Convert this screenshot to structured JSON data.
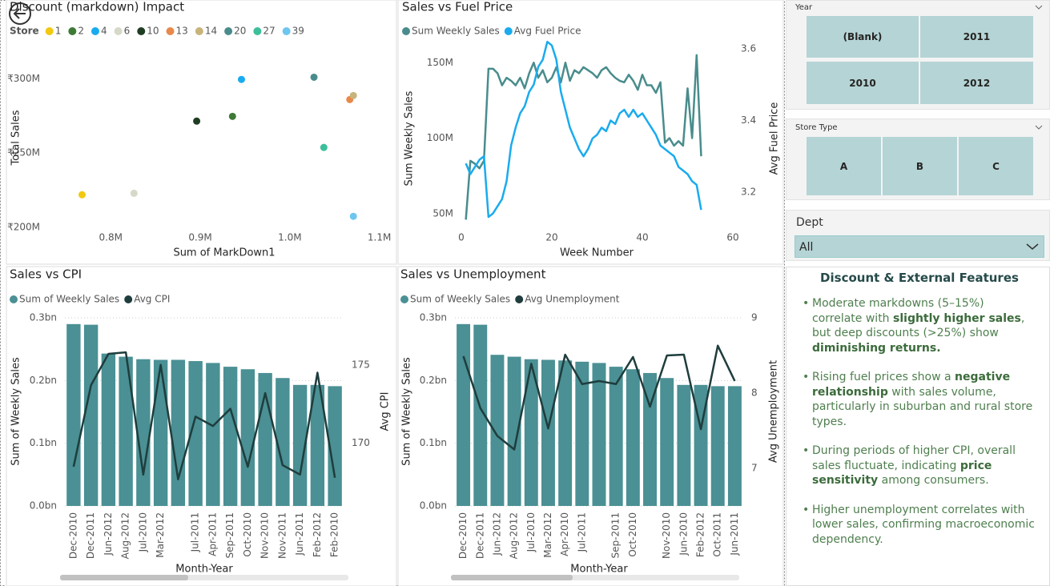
{
  "chart_data": [
    {
      "type": "scatter",
      "title": "Discount (markdown) Impact",
      "legend_title": "Store",
      "xlabel": "Sum of MarkDown1",
      "ylabel": "Total Sales",
      "xlim": [
        730000,
        1120000
      ],
      "xticks": [
        {
          "value": 800000,
          "label": "0.8M"
        },
        {
          "value": 900000,
          "label": "0.9M"
        },
        {
          "value": 1000000,
          "label": "1.0M"
        },
        {
          "value": 1100000,
          "label": "1.1M"
        }
      ],
      "ylim": [
        199000000,
        326000000
      ],
      "yticks": [
        {
          "value": 200000000,
          "label": "₹200M"
        },
        {
          "value": 250000000,
          "label": "₹250M"
        },
        {
          "value": 300000000,
          "label": "₹300M"
        }
      ],
      "grid": false,
      "series": [
        {
          "name": "1",
          "color": "#f2c811",
          "x": [
            768000
          ],
          "values": [
            222000000
          ]
        },
        {
          "name": "2",
          "color": "#3d7a36",
          "x": [
            936000
          ],
          "values": [
            274700000
          ]
        },
        {
          "name": "4",
          "color": "#1aabee",
          "x": [
            946000
          ],
          "values": [
            299500000
          ]
        },
        {
          "name": "6",
          "color": "#d8d8c8",
          "x": [
            826000
          ],
          "values": [
            223000000
          ]
        },
        {
          "name": "10",
          "color": "#1f3d22",
          "x": [
            896000
          ],
          "values": [
            271500000
          ]
        },
        {
          "name": "13",
          "color": "#e8894a",
          "x": [
            1067000
          ],
          "values": [
            286000000
          ]
        },
        {
          "name": "14",
          "color": "#c8b47a",
          "x": [
            1071000
          ],
          "values": [
            288700000
          ]
        },
        {
          "name": "20",
          "color": "#4a8c8c",
          "x": [
            1027000
          ],
          "values": [
            301000000
          ]
        },
        {
          "name": "27",
          "color": "#3cbf9a",
          "x": [
            1038000
          ],
          "values": [
            253800000
          ]
        },
        {
          "name": "39",
          "color": "#6ec6f0",
          "x": [
            1071000
          ],
          "values": [
            207500000
          ]
        }
      ]
    },
    {
      "type": "line",
      "title": "Sales vs Fuel Price",
      "xlabel": "Week Number",
      "ylabel": "Sum Weekly Sales",
      "y2label": "Avg Fuel Price",
      "xlim": [
        0,
        60
      ],
      "xticks": [
        0,
        20,
        40,
        60
      ],
      "ylim": [
        43000000,
        165000000
      ],
      "yticks": [
        {
          "value": 50000000,
          "label": "50M"
        },
        {
          "value": 100000000,
          "label": "100M"
        },
        {
          "value": 150000000,
          "label": "150M"
        }
      ],
      "y2lim": [
        3.11,
        3.625
      ],
      "y2ticks": [
        3.2,
        3.4,
        3.6
      ],
      "grid": false,
      "x": [
        1,
        2,
        3,
        4,
        5,
        6,
        7,
        8,
        9,
        10,
        11,
        12,
        13,
        14,
        15,
        16,
        17,
        18,
        19,
        20,
        21,
        22,
        23,
        24,
        25,
        26,
        27,
        28,
        29,
        30,
        31,
        32,
        33,
        34,
        35,
        36,
        37,
        38,
        39,
        40,
        41,
        42,
        43,
        44,
        45,
        46,
        47,
        48,
        49,
        50,
        51,
        52,
        53
      ],
      "series": [
        {
          "name": "Sum Weekly Sales",
          "color": "#4a8c8c",
          "values": [
            46000000,
            85000000,
            83000000,
            80000000,
            85000000,
            146000000,
            146000000,
            143000000,
            135000000,
            140000000,
            138000000,
            135000000,
            140000000,
            133000000,
            143000000,
            150000000,
            140000000,
            145000000,
            137000000,
            140000000,
            147000000,
            137000000,
            150000000,
            138000000,
            145000000,
            143000000,
            147000000,
            145000000,
            143000000,
            140000000,
            145000000,
            147000000,
            143000000,
            140000000,
            138000000,
            137000000,
            142000000,
            138000000,
            132000000,
            142000000,
            135000000,
            135000000,
            130000000,
            137000000,
            97000000,
            100000000,
            95000000,
            98000000,
            95000000,
            133000000,
            100000000,
            155000000,
            88000000
          ]
        },
        {
          "name": "Avg Fuel Price",
          "color": "#1aabee",
          "axis": "y2",
          "values": [
            3.28,
            3.25,
            3.27,
            3.29,
            3.3,
            3.13,
            3.14,
            3.16,
            3.18,
            3.23,
            3.33,
            3.38,
            3.42,
            3.44,
            3.48,
            3.5,
            3.55,
            3.57,
            3.62,
            3.61,
            3.57,
            3.48,
            3.43,
            3.38,
            3.35,
            3.32,
            3.3,
            3.32,
            3.35,
            3.36,
            3.38,
            3.37,
            3.4,
            3.39,
            3.42,
            3.43,
            3.41,
            3.43,
            3.41,
            3.42,
            3.4,
            3.38,
            3.36,
            3.33,
            3.32,
            3.31,
            3.3,
            3.27,
            3.26,
            3.25,
            3.23,
            3.22,
            3.15
          ]
        }
      ]
    },
    {
      "type": "combo",
      "title": "Sales vs CPI",
      "xlabel": "Month-Year",
      "ylabel": "Sum of Weekly Sales",
      "y2label": "Avg CPI",
      "categories": [
        "Dec-2010",
        "Dec-2011",
        "Jun-2012",
        "Aug-2012",
        "Jul-2010",
        "Mar-2012",
        null,
        "Jul-2011",
        "Apr-2011",
        "Sep-2011",
        "Oct-2010",
        "Nov-2010",
        "Nov-2011",
        "Jun-2011",
        "Feb-2012",
        "Feb-2010"
      ],
      "ylim": [
        0,
        300000000
      ],
      "yticks": [
        {
          "value": 0,
          "label": "0.0bn"
        },
        {
          "value": 100000000,
          "label": "0.1bn"
        },
        {
          "value": 200000000,
          "label": "0.2bn"
        },
        {
          "value": 300000000,
          "label": "0.3bn"
        }
      ],
      "y2lim": [
        166,
        178
      ],
      "y2ticks": [
        170,
        175
      ],
      "grid": true,
      "series": [
        {
          "name": "Sum of Weekly Sales",
          "type": "bar",
          "color": "#4a9094",
          "values": [
            290000000,
            289000000,
            243000000,
            238000000,
            234000000,
            233000000,
            233000000,
            231000000,
            228000000,
            222000000,
            218000000,
            212000000,
            204000000,
            193000000,
            193000000,
            191000000
          ]
        },
        {
          "name": "Avg CPI",
          "type": "line",
          "axis": "y2",
          "color": "#1f3d3d",
          "values": [
            168.5,
            173.7,
            175.7,
            175.8,
            168.0,
            175.0,
            167.7,
            171.7,
            171.1,
            172.2,
            168.5,
            173.2,
            168.6,
            168.0,
            174.5,
            167.8
          ]
        }
      ]
    },
    {
      "type": "combo",
      "title": "Sales vs Unemployment",
      "xlabel": "Month-Year",
      "ylabel": "Sum of Weekly Sales",
      "y2label": "Avg Unemployment",
      "categories": [
        "Dec-2010",
        "Dec-2011",
        "Jun-2012",
        "Aug-2012",
        "Jul-2010",
        "Mar-2012",
        "Apr-2010",
        "Jul-2011",
        null,
        "Sep-2011",
        "Oct-2010",
        null,
        "Nov-2010",
        "Jun-2010",
        "Feb-2012",
        "Oct-2011",
        "Jun-2011"
      ],
      "ylim": [
        0,
        300000000
      ],
      "yticks": [
        {
          "value": 0,
          "label": "0.0bn"
        },
        {
          "value": 100000000,
          "label": "0.1bn"
        },
        {
          "value": 200000000,
          "label": "0.2bn"
        },
        {
          "value": 300000000,
          "label": "0.3bn"
        }
      ],
      "y2lim": [
        6.5,
        9
      ],
      "y2ticks": [
        7,
        8,
        9
      ],
      "grid": true,
      "series": [
        {
          "name": "Sum of Weekly Sales",
          "type": "bar",
          "color": "#4a9094",
          "values": [
            290000000,
            289000000,
            241000000,
            238000000,
            234000000,
            233000000,
            232000000,
            230000000,
            228000000,
            222000000,
            218000000,
            212000000,
            204000000,
            193000000,
            193000000,
            191000000,
            191000000
          ]
        },
        {
          "name": "Avg Unemployment",
          "type": "line",
          "axis": "y2",
          "color": "#1f3d3d",
          "values": [
            8.49,
            7.8,
            7.43,
            7.25,
            8.39,
            7.53,
            8.51,
            8.12,
            8.16,
            8.12,
            8.48,
            7.82,
            8.5,
            8.51,
            7.52,
            8.63,
            8.16
          ]
        }
      ]
    }
  ],
  "slicers": {
    "year": {
      "title": "Year",
      "options": [
        "(Blank)",
        "2011",
        "2010",
        "2012"
      ]
    },
    "store_type": {
      "title": "Store Type",
      "options": [
        "A",
        "B",
        "C"
      ]
    },
    "dept": {
      "title": "Dept",
      "selected": "All"
    }
  },
  "notes": {
    "title": "Discount & External Features",
    "bullets": [
      [
        {
          "text": "Moderate markdowns (5–15%) correlate with ",
          "bold": false
        },
        {
          "text": "slightly higher sales",
          "bold": true
        },
        {
          "text": ", but deep discounts (>25%) show ",
          "bold": false
        },
        {
          "text": "diminishing returns.",
          "bold": true
        }
      ],
      [
        {
          "text": "Rising fuel prices show a ",
          "bold": false
        },
        {
          "text": "negative relationship",
          "bold": true
        },
        {
          "text": " with sales volume, particularly in suburban and rural store types.",
          "bold": false
        }
      ],
      [
        {
          "text": "During periods of higher CPI, overall sales fluctuate, indicating ",
          "bold": false
        },
        {
          "text": "price sensitivity",
          "bold": true
        },
        {
          "text": " among consumers.",
          "bold": false
        }
      ],
      [
        {
          "text": "Higher unemployment correlates with lower sales, confirming macroeconomic dependency.",
          "bold": false
        }
      ]
    ]
  }
}
